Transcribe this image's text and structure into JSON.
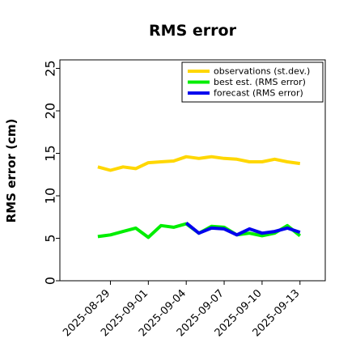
{
  "chart_data": {
    "type": "line",
    "title": "RMS error",
    "xlabel": "",
    "ylabel": "RMS error (cm)",
    "ylim": [
      0,
      26
    ],
    "yticks": [
      0,
      5,
      10,
      15,
      20,
      25
    ],
    "x_dates": [
      "2025-08-28",
      "2025-08-29",
      "2025-08-30",
      "2025-08-31",
      "2025-09-01",
      "2025-09-02",
      "2025-09-03",
      "2025-09-04",
      "2025-09-05",
      "2025-09-06",
      "2025-09-07",
      "2025-09-08",
      "2025-09-09",
      "2025-09-10",
      "2025-09-11",
      "2025-09-12",
      "2025-09-13"
    ],
    "xlim": [
      "2025-08-25",
      "2025-09-15"
    ],
    "xticks": [
      {
        "label": "2025-08-29",
        "color": "#000000"
      },
      {
        "label": "2025-09-01",
        "color": "#000000"
      },
      {
        "label": "2025-09-04",
        "color": "#228b22"
      },
      {
        "label": "2025-09-07",
        "color": "#000000"
      },
      {
        "label": "2025-09-10",
        "color": "#000000"
      },
      {
        "label": "2025-09-13",
        "color": "#000000"
      }
    ],
    "legend_position": "top-right",
    "series": [
      {
        "name": "observations (st.dev.)",
        "color": "#ffd700",
        "x": [
          "2025-08-28",
          "2025-08-29",
          "2025-08-30",
          "2025-08-31",
          "2025-09-01",
          "2025-09-02",
          "2025-09-03",
          "2025-09-04",
          "2025-09-05",
          "2025-09-06",
          "2025-09-07",
          "2025-09-08",
          "2025-09-09",
          "2025-09-10",
          "2025-09-11",
          "2025-09-12",
          "2025-09-13"
        ],
        "values": [
          13.4,
          13.0,
          13.4,
          13.2,
          13.9,
          14.0,
          14.1,
          14.6,
          14.4,
          14.6,
          14.4,
          14.3,
          14.0,
          14.0,
          14.3,
          14.0,
          13.8
        ]
      },
      {
        "name": "best est. (RMS error)",
        "color": "#00ee00",
        "x": [
          "2025-08-28",
          "2025-08-29",
          "2025-08-30",
          "2025-08-31",
          "2025-09-01",
          "2025-09-02",
          "2025-09-03",
          "2025-09-04",
          "2025-09-05",
          "2025-09-06",
          "2025-09-07",
          "2025-09-08",
          "2025-09-09",
          "2025-09-10",
          "2025-09-11",
          "2025-09-12",
          "2025-09-13"
        ],
        "values": [
          5.2,
          5.4,
          5.8,
          6.2,
          5.1,
          6.5,
          6.3,
          6.7,
          5.6,
          6.4,
          6.3,
          5.4,
          5.6,
          5.3,
          5.6,
          6.5,
          5.3
        ]
      },
      {
        "name": "forecast (RMS error)",
        "color": "#0000ee",
        "x": [
          "2025-09-04",
          "2025-09-05",
          "2025-09-06",
          "2025-09-07",
          "2025-09-08",
          "2025-09-09",
          "2025-09-10",
          "2025-09-11",
          "2025-09-12",
          "2025-09-13"
        ],
        "values": [
          6.8,
          5.6,
          6.2,
          6.1,
          5.4,
          6.1,
          5.6,
          5.8,
          6.2,
          5.7
        ]
      }
    ]
  }
}
